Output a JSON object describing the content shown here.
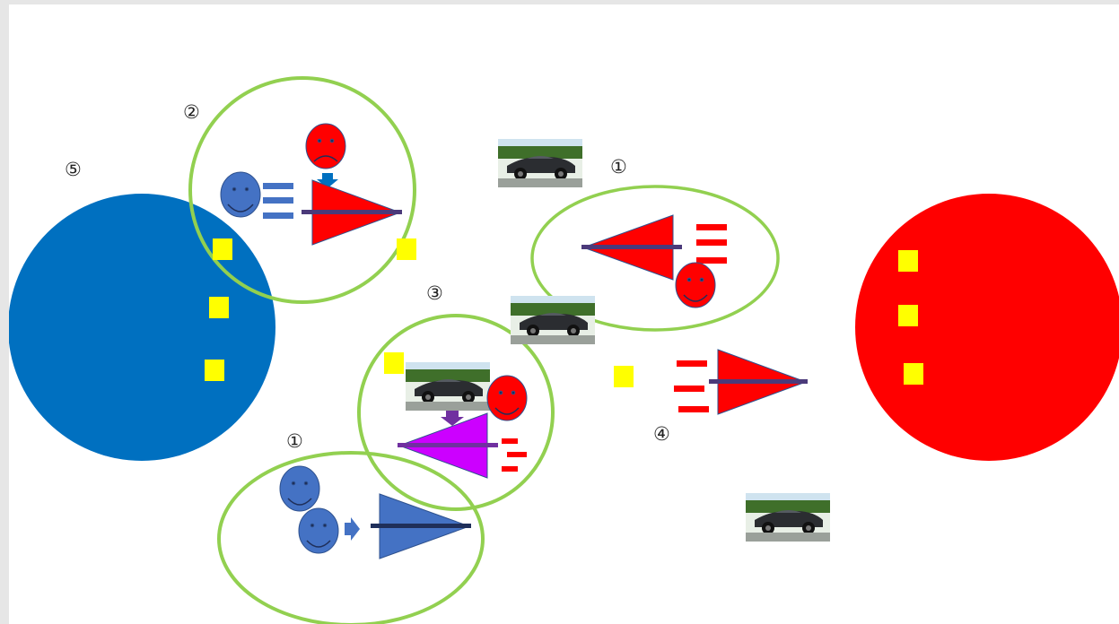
{
  "labels": {
    "n1_top": "①",
    "n1_bottom": "①",
    "n2": "②",
    "n3": "③",
    "n4": "④",
    "n5": "⑤"
  },
  "colors": {
    "blue_team": "#0070c0",
    "red_team": "#ff0000",
    "group_ring": "#92d050",
    "marker": "#ffff00",
    "blue_face": "#4472c4",
    "red_face": "#ff0000",
    "purple_ship": "#cc00ff",
    "beam": "#4b3a7a"
  },
  "icons": {
    "face": "smiley-face-icon",
    "car": "car-photo-icon",
    "ship": "triangle-ship-icon",
    "arrow": "arrow-icon"
  }
}
